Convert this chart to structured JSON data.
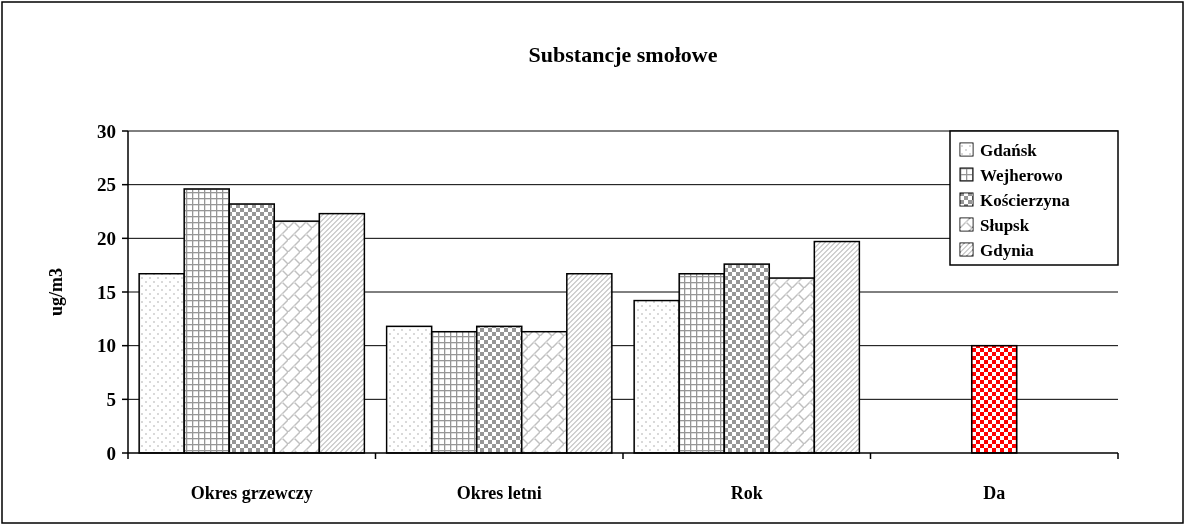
{
  "chart_data": {
    "type": "bar",
    "title": "Substancje smołowe",
    "ylabel": "ug/m3",
    "categories": [
      "Okres grzewczy",
      "Okres letni",
      "Rok",
      "Da"
    ],
    "series": [
      {
        "name": "Gdańsk",
        "color": "#c0c0c0",
        "values": [
          16.7,
          11.8,
          14.2,
          null
        ]
      },
      {
        "name": "Wejherowo",
        "color": "#969696",
        "values": [
          24.6,
          11.3,
          16.7,
          null
        ]
      },
      {
        "name": "Kościerzyna",
        "color": "#969696",
        "colors": [
          "#969696",
          "#969696",
          "#969696",
          "#ff0000"
        ],
        "values": [
          23.2,
          11.8,
          17.6,
          10
        ]
      },
      {
        "name": "Słupsk",
        "color": "#c0c0c0",
        "values": [
          21.6,
          11.3,
          16.3,
          null
        ]
      },
      {
        "name": "Gdynia",
        "color": "#c0c0c0",
        "values": [
          22.3,
          16.7,
          19.7,
          null
        ]
      }
    ],
    "ylim": [
      0,
      30
    ],
    "yticks": [
      0,
      5,
      10,
      15,
      20,
      25,
      30
    ],
    "grid": "y",
    "legend": "top right"
  }
}
